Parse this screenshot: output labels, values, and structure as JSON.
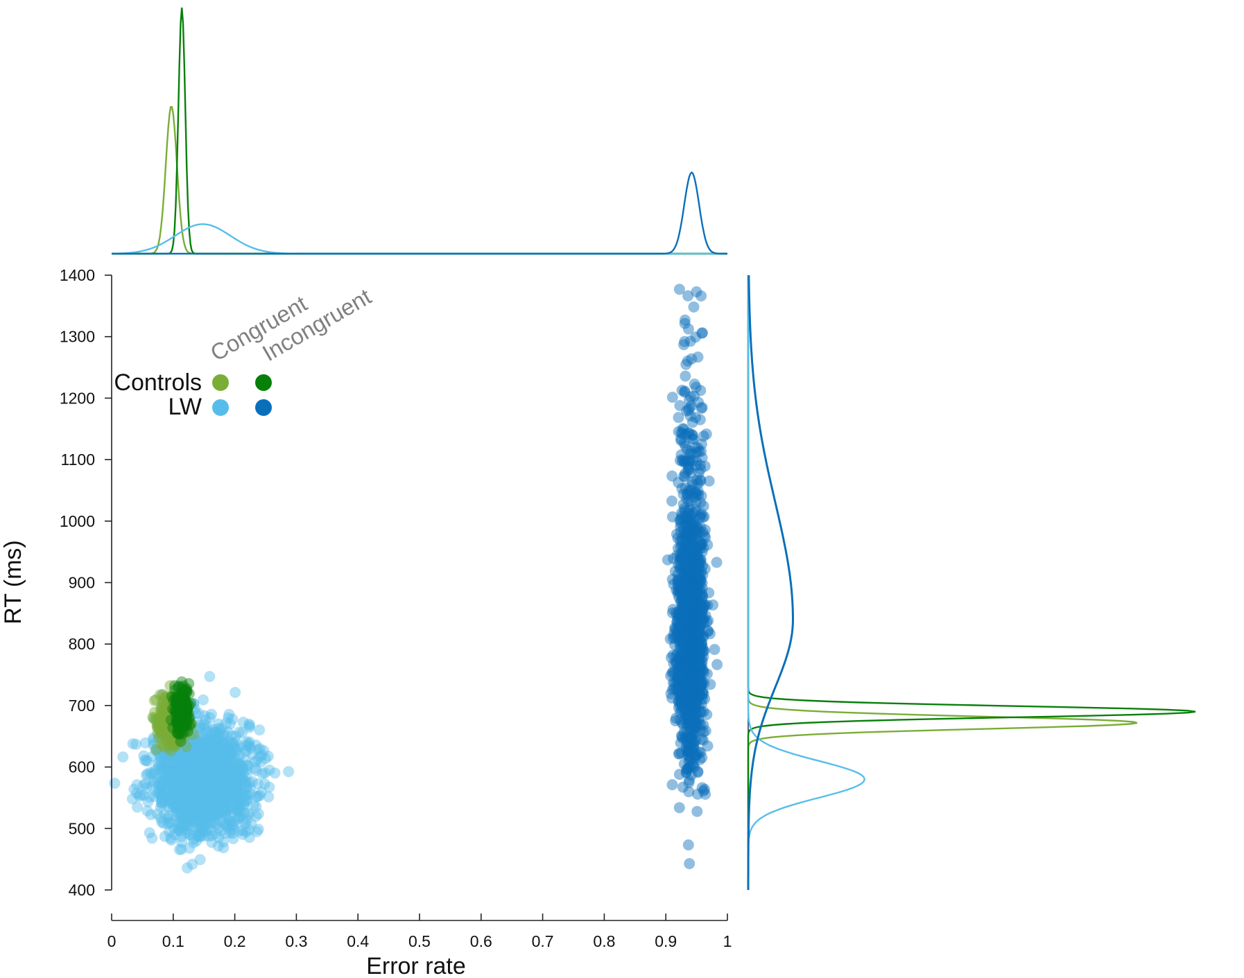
{
  "chart_data": {
    "type": "scatter",
    "xlabel": "Error rate",
    "ylabel": "RT (ms)",
    "xlim": [
      0,
      1
    ],
    "ylim": [
      400,
      1400
    ],
    "x_ticks": [
      "0",
      "0.1",
      "0.2",
      "0.3",
      "0.4",
      "0.5",
      "0.6",
      "0.7",
      "0.8",
      "0.9",
      "1"
    ],
    "y_ticks": [
      "400",
      "500",
      "600",
      "700",
      "800",
      "900",
      "1000",
      "1100",
      "1200",
      "1300",
      "1400"
    ],
    "legend": {
      "columns": [
        "Congruent",
        "Incongruent"
      ],
      "rows": [
        "Controls",
        "LW"
      ]
    },
    "series": [
      {
        "group": "Controls",
        "condition": "Congruent",
        "color": "#7aad35",
        "error_mean": 0.098,
        "error_sd": 0.012,
        "rt_mean": 675,
        "rt_sd": 22,
        "marginal_error_peak": 0.097,
        "marginal_rt_peak": 672
      },
      {
        "group": "Controls",
        "condition": "Incongruent",
        "color": "#07800a",
        "error_mean": 0.114,
        "error_sd": 0.006,
        "rt_mean": 692,
        "rt_sd": 18,
        "marginal_error_peak": 0.114,
        "marginal_rt_peak": 690
      },
      {
        "group": "LW",
        "condition": "Congruent",
        "color": "#56bdeb",
        "error_mean": 0.15,
        "error_sd": 0.04,
        "rt_mean": 578,
        "rt_sd": 45,
        "marginal_error_peak": 0.148,
        "marginal_rt_peak": 580
      },
      {
        "group": "LW",
        "condition": "Incongruent",
        "color": "#0a6fba",
        "error_mean": 0.94,
        "error_sd": 0.012,
        "rt_mean": 815,
        "rt_sd": 95,
        "marginal_error_peak": 0.942,
        "marginal_rt_peak": 840
      }
    ]
  }
}
